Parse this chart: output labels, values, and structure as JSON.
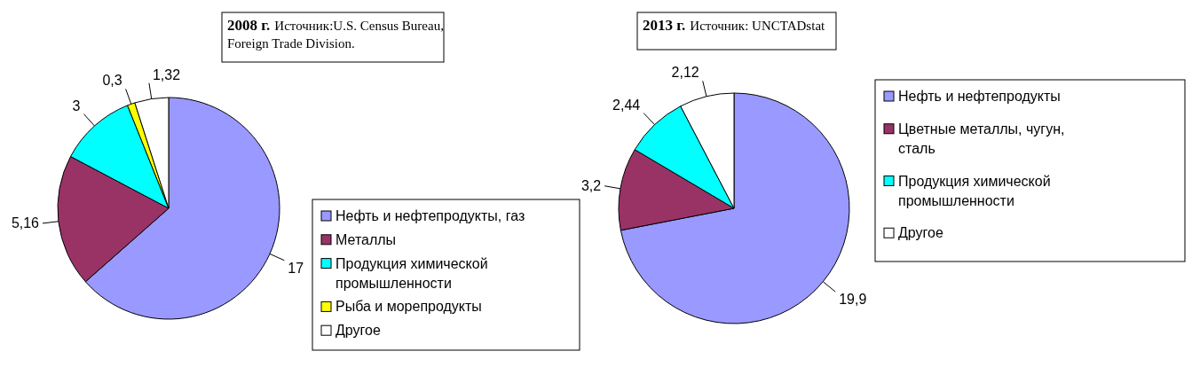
{
  "chart_data": [
    {
      "type": "pie",
      "title": "2008 г.",
      "subtitle": "Источник:U.S. Census Bureau, Foreign Trade Division.",
      "categories": [
        "Нефть и нефтепродукты, газ",
        "Металлы",
        "Продукция химической промышленности",
        "Рыба и морепродукты",
        "Другое"
      ],
      "values": [
        17,
        5.16,
        3,
        0.3,
        1.32
      ],
      "value_labels": [
        "17",
        "5,16",
        "3",
        "0,3",
        "1,32"
      ],
      "colors": [
        "#9999ff",
        "#993366",
        "#00ffff",
        "#ffff00",
        "#ffffff"
      ],
      "legend": "right"
    },
    {
      "type": "pie",
      "title": "2013 г.",
      "subtitle": "Источник: UNCTADstat",
      "categories": [
        "Нефть и нефтепродукты",
        "Цветные металлы, чугун, сталь",
        "Продукция химической промышленности",
        "Другое"
      ],
      "values": [
        19.9,
        3.2,
        2.44,
        2.12
      ],
      "value_labels": [
        "19,9",
        "3,2",
        "2,44",
        "2,12"
      ],
      "colors": [
        "#9999ff",
        "#993366",
        "#00ffff",
        "#ffffff"
      ],
      "legend": "right"
    }
  ]
}
